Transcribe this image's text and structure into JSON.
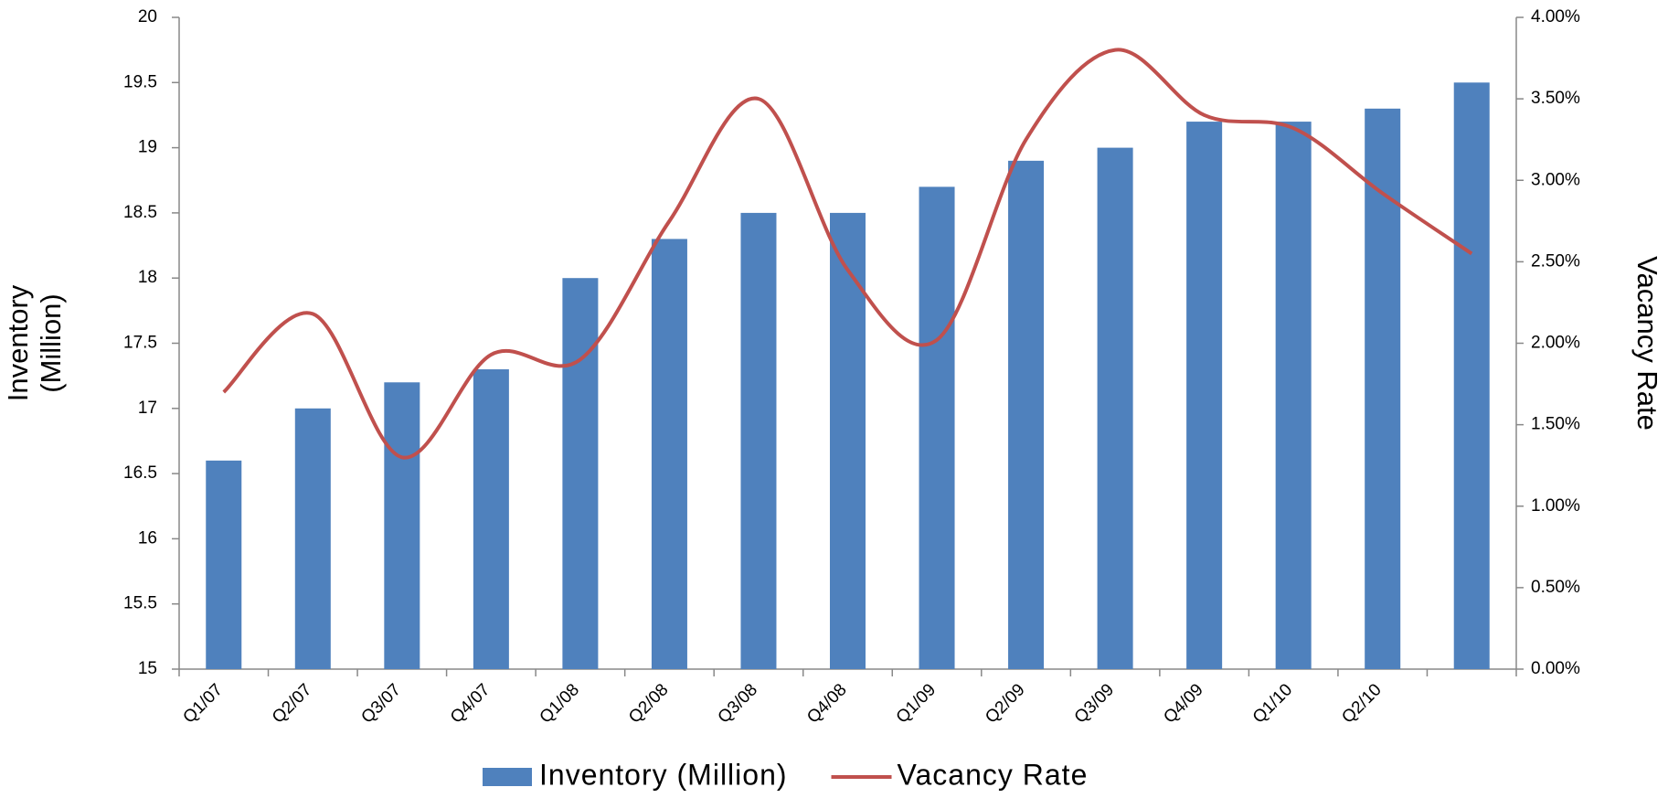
{
  "chart_data": {
    "type": "bar",
    "categories": [
      "Q1/07",
      "Q2/07",
      "Q3/07",
      "Q4/07",
      "Q1/08",
      "Q2/08",
      "Q3/08",
      "Q4/08",
      "Q1/09",
      "Q2/09",
      "Q3/09",
      "Q4/09",
      "Q1/10",
      "Q2/10",
      null
    ],
    "series": [
      {
        "name": "Inventory (Million)",
        "type": "bar",
        "color": "#4f81bd",
        "values": [
          16.6,
          17.0,
          17.2,
          17.3,
          18.0,
          18.3,
          18.5,
          18.5,
          18.7,
          18.9,
          19.0,
          19.2,
          19.2,
          19.3,
          19.5
        ]
      },
      {
        "name": "Vacancy Rate",
        "type": "line",
        "axis": "y2",
        "color": "#c0504d",
        "values": [
          1.7,
          2.18,
          1.3,
          1.93,
          1.9,
          2.75,
          3.5,
          2.45,
          2.02,
          3.25,
          3.8,
          3.4,
          3.32,
          2.92,
          2.55
        ]
      }
    ],
    "ylabel": [
      "Inventory",
      "(Million)"
    ],
    "y2label": "Vacancy Rate",
    "ylim": [
      15,
      20
    ],
    "yticks": [
      15,
      15.5,
      16,
      16.5,
      17,
      17.5,
      18,
      18.5,
      19,
      19.5,
      20
    ],
    "y2lim": [
      0,
      4
    ],
    "y2ticks": [
      {
        "value": 0,
        "label": "0.00%"
      },
      {
        "value": 0.5,
        "label": "0.50%"
      },
      {
        "value": 1,
        "label": "1.00%"
      },
      {
        "value": 1.5,
        "label": "1.50%"
      },
      {
        "value": 2,
        "label": "2.00%"
      },
      {
        "value": 2.5,
        "label": "2.50%"
      },
      {
        "value": 3,
        "label": "3.00%"
      },
      {
        "value": 3.5,
        "label": "3.50%"
      },
      {
        "value": 4,
        "label": "4.00%"
      }
    ],
    "legend": "bottom",
    "grid": false
  }
}
